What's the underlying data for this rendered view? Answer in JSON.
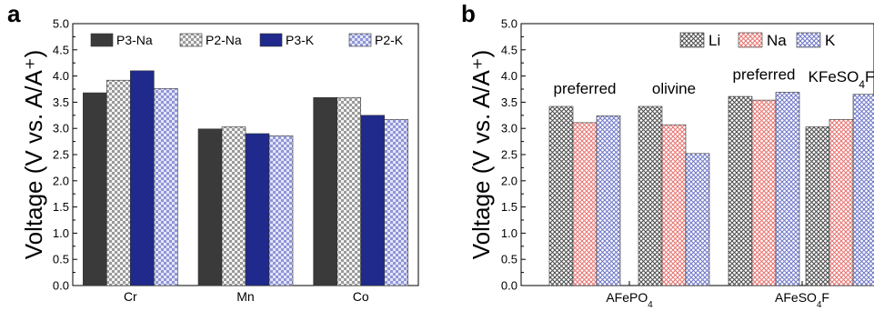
{
  "chart_data": [
    {
      "type": "bar",
      "panel_label": "a",
      "ylabel": "Voltage (V vs. A/A⁺)",
      "ylim": [
        0.0,
        5.0
      ],
      "yticks": [
        "0.0",
        "0.5",
        "1.0",
        "1.5",
        "2.0",
        "2.5",
        "3.0",
        "3.5",
        "4.0",
        "4.5",
        "5.0"
      ],
      "categories": [
        "Cr",
        "Mn",
        "Co"
      ],
      "legend_placement": "top",
      "series": [
        {
          "name": "P3-Na",
          "color": "#3a3a3a",
          "pattern": "solid",
          "values": [
            3.68,
            2.99,
            3.59
          ]
        },
        {
          "name": "P2-Na",
          "color": "#cfcfcf",
          "pattern": "checker-gray",
          "values": [
            3.92,
            3.03,
            3.59
          ]
        },
        {
          "name": "P3-K",
          "color": "#1f2a8c",
          "pattern": "solid",
          "values": [
            4.1,
            2.9,
            3.25
          ]
        },
        {
          "name": "P2-K",
          "color": "#b9bde6",
          "pattern": "checker-blue",
          "values": [
            3.76,
            2.86,
            3.17
          ]
        }
      ]
    },
    {
      "type": "bar",
      "panel_label": "b",
      "ylabel": "Voltage (V vs. A/A⁺)",
      "ylim": [
        0.0,
        5.0
      ],
      "yticks": [
        "0.0",
        "0.5",
        "1.0",
        "1.5",
        "2.0",
        "2.5",
        "3.0",
        "3.5",
        "4.0",
        "4.5",
        "5.0"
      ],
      "categories": [
        "preferred",
        "olivine",
        "preferred",
        "KFeSO₄F"
      ],
      "group_labels": [
        "AFePO₄",
        "AFeSO₄F"
      ],
      "legend_placement": "top-right",
      "series": [
        {
          "name": "Li",
          "color": "#555555",
          "pattern": "crosshatch-gray",
          "values": [
            3.42,
            3.42,
            3.61,
            3.03
          ]
        },
        {
          "name": "Na",
          "color": "#e8736f",
          "pattern": "crosshatch-red",
          "values": [
            3.11,
            3.07,
            3.54,
            3.17
          ]
        },
        {
          "name": "K",
          "color": "#6e76c8",
          "pattern": "crosshatch-blue",
          "values": [
            3.24,
            2.52,
            3.69,
            3.65
          ]
        }
      ]
    }
  ]
}
